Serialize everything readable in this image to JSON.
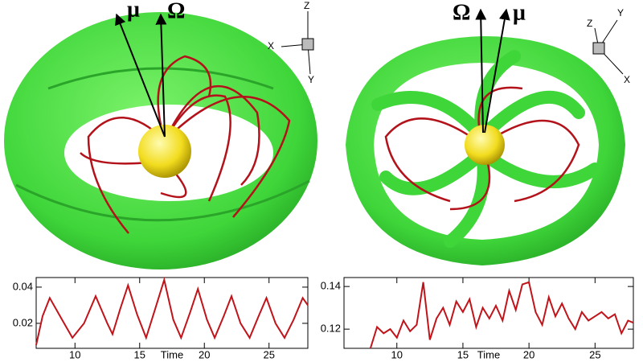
{
  "chart_data": [
    {
      "type": "line",
      "xlabel": "Time",
      "xlim": [
        7,
        28
      ],
      "ylim": [
        0.0062,
        0.0453
      ],
      "xticks": [
        10,
        15,
        20,
        25
      ],
      "yticks": [
        0.02,
        0.04
      ],
      "series": [
        {
          "color": "#c0141a",
          "x": [
            7,
            7.5,
            8.05,
            9,
            9.8,
            10.7,
            11.6,
            12.5,
            12.9,
            13.5,
            14.1,
            14.8,
            15.5,
            16.2,
            16.9,
            17.6,
            18.2,
            18.9,
            19.5,
            20.2,
            20.8,
            21.5,
            22.1,
            22.8,
            23.5,
            24.2,
            24.8,
            25.5,
            26.2,
            26.9,
            27.6,
            28
          ],
          "values": [
            0.008,
            0.024,
            0.034,
            0.022,
            0.012,
            0.02,
            0.035,
            0.02,
            0.014,
            0.028,
            0.041,
            0.025,
            0.012,
            0.028,
            0.044,
            0.022,
            0.012,
            0.026,
            0.039,
            0.022,
            0.012,
            0.024,
            0.035,
            0.02,
            0.012,
            0.024,
            0.034,
            0.02,
            0.012,
            0.022,
            0.034,
            0.03
          ]
        }
      ]
    },
    {
      "type": "line",
      "xlabel": "Time",
      "xlim": [
        6,
        27.9
      ],
      "ylim": [
        0.111,
        0.1442
      ],
      "xticks": [
        10,
        15,
        20,
        25
      ],
      "yticks": [
        0.12,
        0.14
      ],
      "series": [
        {
          "color": "#c0141a",
          "x": [
            8,
            8.5,
            9,
            9.5,
            10,
            10.5,
            11,
            11.5,
            12,
            12.5,
            13,
            13.5,
            14,
            14.5,
            15,
            15.5,
            16,
            16.5,
            17,
            17.5,
            18,
            18.5,
            19,
            19.5,
            20,
            20.5,
            21,
            21.5,
            22,
            22.5,
            23,
            23.5,
            24,
            24.5,
            25,
            25.5,
            26,
            26.5,
            27,
            27.5,
            27.9
          ],
          "values": [
            0.111,
            0.121,
            0.118,
            0.12,
            0.116,
            0.124,
            0.119,
            0.122,
            0.142,
            0.115,
            0.125,
            0.13,
            0.122,
            0.133,
            0.128,
            0.134,
            0.121,
            0.13,
            0.125,
            0.131,
            0.124,
            0.138,
            0.129,
            0.141,
            0.142,
            0.128,
            0.122,
            0.135,
            0.126,
            0.132,
            0.125,
            0.12,
            0.128,
            0.124,
            0.126,
            0.128,
            0.125,
            0.127,
            0.118,
            0.124,
            0.123
          ]
        }
      ]
    }
  ],
  "renderings": [
    {
      "arrows": [
        "μ",
        "Ω"
      ],
      "triad": [
        "Z",
        "X",
        "Y"
      ]
    },
    {
      "arrows": [
        "Ω",
        "μ"
      ],
      "triad": [
        "Z",
        "Y",
        "X"
      ]
    }
  ]
}
